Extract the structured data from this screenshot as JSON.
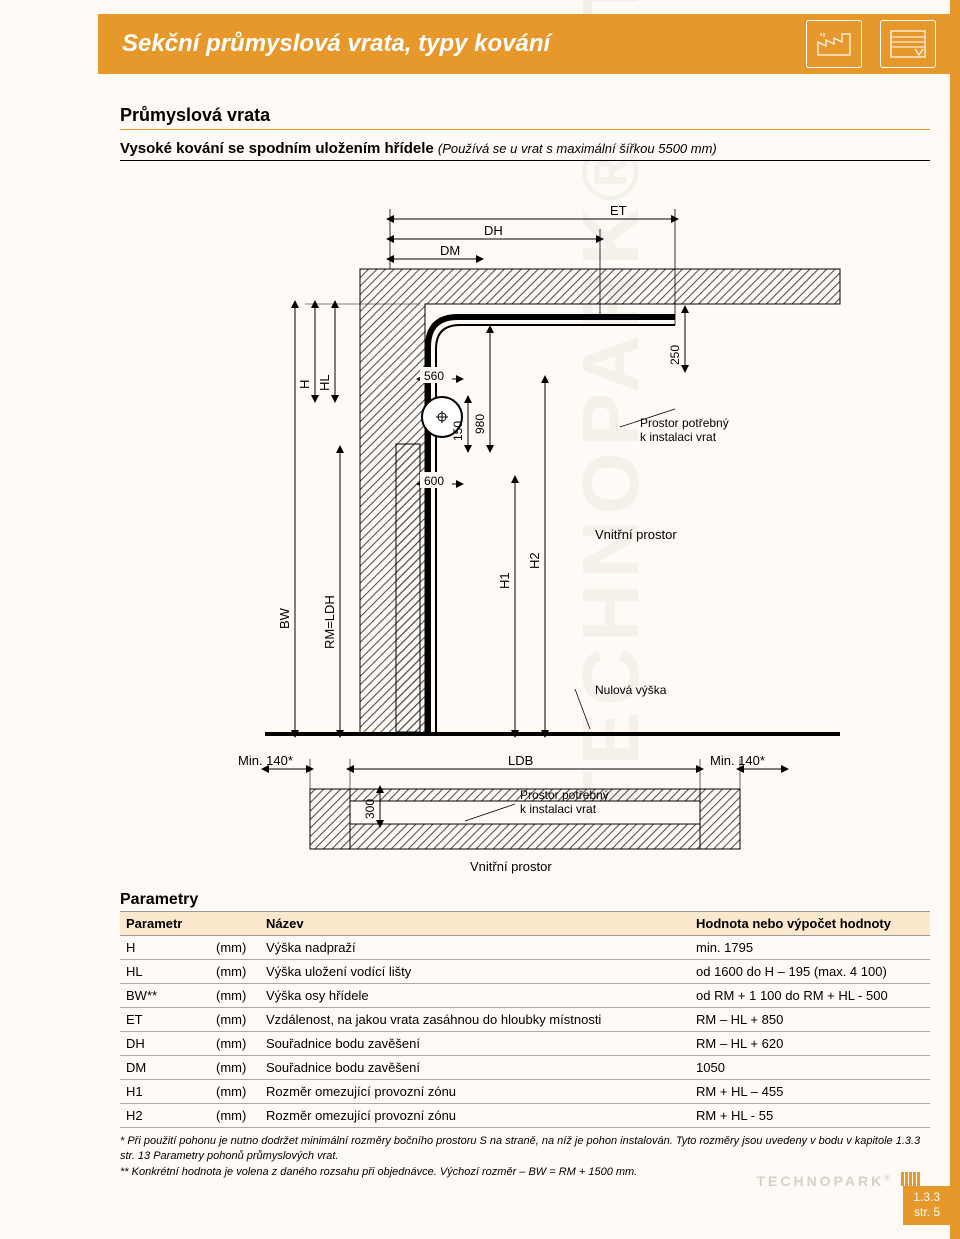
{
  "header": {
    "title": "Sekční průmyslová vrata, typy kování",
    "accent_color": "#e6992a",
    "text_color": "#ffffff"
  },
  "section": {
    "title": "Průmyslová vrata",
    "subtitle": "Vysoké kování se spodním uložením hřídele",
    "subtitle_note": "(Používá se u vrat s maximální šířkou 5500 mm)"
  },
  "diagram": {
    "labels": {
      "ET": "ET",
      "DH": "DH",
      "DM": "DM",
      "H": "H",
      "HL": "HL",
      "BW": "BW",
      "RM_LDH": "RM=LDH",
      "H1": "H1",
      "H2": "H2",
      "LDB": "LDB",
      "d560": "560",
      "d600": "600",
      "d150": "150",
      "d980": "980",
      "d250": "250",
      "d300": "300",
      "min140_left": "Min. 140*",
      "min140_right": "Min. 140*",
      "prostor_install": "Prostor potřebný",
      "prostor_install2": "k instalaci vrat",
      "vnitrni_prostor": "Vnitřní prostor",
      "nulova_vyska": "Nulová výška"
    },
    "style": {
      "line_color": "#000000",
      "hatch_color": "#555555",
      "background": "#fffaf5",
      "font_size_label": 12,
      "font_size_dim": 12
    }
  },
  "table": {
    "title": "Parametry",
    "header_bg": "#fce8cd",
    "columns": [
      "Parametr",
      "",
      "Název",
      "Hodnota nebo výpočet hodnoty"
    ],
    "rows": [
      [
        "H",
        "(mm)",
        "Výška nadpraží",
        "min. 1795"
      ],
      [
        "HL",
        "(mm)",
        "Výška uložení vodící lišty",
        "od 1600 do H – 195 (max. 4 100)"
      ],
      [
        "BW**",
        "(mm)",
        "Výška osy hřídele",
        "od RM + 1 100 do RM + HL - 500"
      ],
      [
        "ET",
        "(mm)",
        "Vzdálenost, na jakou vrata zasáhnou do hloubky místnosti",
        "RM – HL + 850"
      ],
      [
        "DH",
        "(mm)",
        "Souřadnice bodu zavěšení",
        "RM – HL + 620"
      ],
      [
        "DM",
        "(mm)",
        "Souřadnice bodu zavěšení",
        "1050"
      ],
      [
        "H1",
        "(mm)",
        "Rozměr omezující provozní zónu",
        "RM + HL – 455"
      ],
      [
        "H2",
        "(mm)",
        "Rozměr omezující provozní zónu",
        "RM + HL - 55"
      ]
    ]
  },
  "footnotes": {
    "line1": "* Při použití pohonu je nutno dodržet minimální rozměry bočního prostoru S na straně, na níž je pohon instalován. Tyto rozměry jsou uvedeny v bodu v kapitole 1.3.3 str. 13 Parametry pohonů průmyslových vrat.",
    "line2": "** Konkrétní hodnota je volena z daného rozsahu při objednávce. Výchozí rozměr – BW = RM + 1500 mm."
  },
  "footer": {
    "ref": "1.3.3",
    "page": "str. 5",
    "brand": "TECHNOPARK"
  },
  "watermark_text": "TECHNOPARK"
}
